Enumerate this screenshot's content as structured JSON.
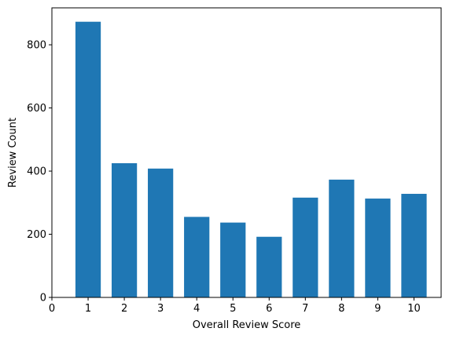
{
  "chart_data": {
    "type": "bar",
    "title": "",
    "xlabel": "Overall Review Score",
    "ylabel": "Review Count",
    "categories": [
      1,
      2,
      3,
      4,
      5,
      6,
      7,
      8,
      9,
      10
    ],
    "values": [
      873,
      425,
      408,
      255,
      237,
      192,
      316,
      373,
      313,
      328
    ],
    "xlim": [
      0,
      10.75
    ],
    "ylim": [
      0,
      917
    ],
    "xticks": [
      "0",
      "1",
      "2",
      "3",
      "4",
      "5",
      "6",
      "7",
      "8",
      "9",
      "10"
    ],
    "yticks": [
      "0",
      "200",
      "400",
      "600",
      "800"
    ],
    "bar_color": "#1f77b4",
    "grid": false,
    "legend": "none"
  }
}
